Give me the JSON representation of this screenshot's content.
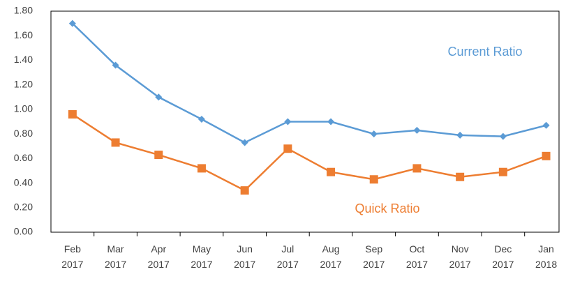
{
  "chart_data": {
    "type": "line",
    "categories": [
      "Feb 2017",
      "Mar 2017",
      "Apr 2017",
      "May 2017",
      "Jun 2017",
      "Jul 2017",
      "Aug 2017",
      "Sep 2017",
      "Oct 2017",
      "Nov 2017",
      "Dec 2017",
      "Jan 2018"
    ],
    "series": [
      {
        "name": "Current Ratio",
        "color": "#5b9bd5",
        "marker": "diamond",
        "values": [
          1.7,
          1.36,
          1.1,
          0.92,
          0.73,
          0.9,
          0.9,
          0.8,
          0.83,
          0.79,
          0.78,
          0.87
        ]
      },
      {
        "name": "Quick Ratio",
        "color": "#ed7d31",
        "marker": "square",
        "values": [
          0.96,
          0.73,
          0.63,
          0.52,
          0.34,
          0.68,
          0.49,
          0.43,
          0.52,
          0.45,
          0.49,
          0.62
        ]
      }
    ],
    "ylim": [
      0,
      1.8
    ],
    "yticks": [
      {
        "value": 0,
        "label": "0.00"
      },
      {
        "value": 0.2,
        "label": "0.20"
      },
      {
        "value": 0.4,
        "label": "0.40"
      },
      {
        "value": 0.6,
        "label": "0.60"
      },
      {
        "value": 0.8,
        "label": "0.80"
      },
      {
        "value": 1,
        "label": "1.00"
      },
      {
        "value": 1.2,
        "label": "1.20"
      },
      {
        "value": 1.4,
        "label": "1.40"
      },
      {
        "value": 1.6,
        "label": "1.60"
      },
      {
        "value": 1.8,
        "label": "1.80"
      }
    ],
    "grid": false
  }
}
